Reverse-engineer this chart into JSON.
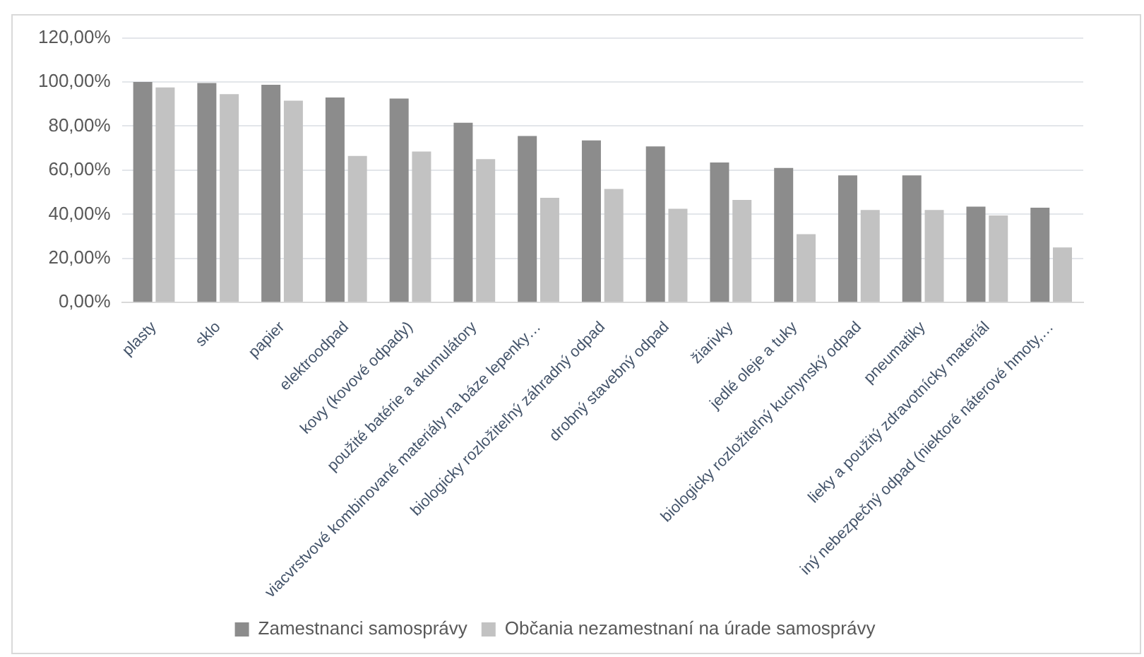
{
  "chart_data": {
    "type": "bar",
    "categories": [
      "plasty",
      "sklo",
      "papier",
      "elektroodpad",
      "kovy (kovové odpady)",
      "použité batérie a akumulátory",
      "viacvrstvové kombinované materiály na báze lepenky…",
      "biologicky rozložiteľný záhradný odpad",
      "drobný stavebný odpad",
      "žiarivky",
      "jedlé oleje a tuky",
      "biologicky rozložiteľný kuchynský odpad",
      "pneumatiky",
      "lieky a použitý zdravotnícky materiál",
      "iný nebezpečný odpad (niektoré náterové hmoty,…"
    ],
    "series": [
      {
        "name": "Zamestnanci samosprávy",
        "color": "#8c8c8c",
        "values": [
          100,
          99.5,
          98.7,
          93,
          92.5,
          81.5,
          75.5,
          73.5,
          70.8,
          63.5,
          61,
          57.7,
          57.7,
          43.5,
          43
        ]
      },
      {
        "name": "Občania nezamestnaní na úrade samosprávy",
        "color": "#c2c2c2",
        "values": [
          97.5,
          94.5,
          91.5,
          66.5,
          68.5,
          65,
          47.5,
          51.5,
          42.5,
          46.5,
          31,
          42,
          42,
          39.5,
          25
        ]
      }
    ],
    "ylim": [
      0,
      120
    ],
    "yticks": [
      {
        "value": 0,
        "label": "0,00%"
      },
      {
        "value": 20,
        "label": "20,00%"
      },
      {
        "value": 40,
        "label": "40,00%"
      },
      {
        "value": 60,
        "label": "60,00%"
      },
      {
        "value": 80,
        "label": "80,00%"
      },
      {
        "value": 100,
        "label": "100,00%"
      },
      {
        "value": 120,
        "label": "120,00%"
      }
    ],
    "grid": "y",
    "legend": "bottom"
  }
}
